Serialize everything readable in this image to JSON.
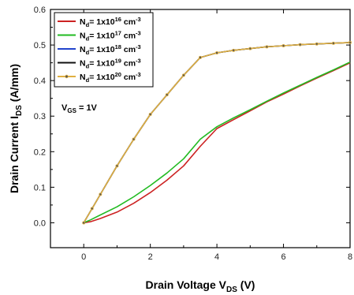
{
  "chart_data": {
    "type": "line",
    "title": "",
    "xlabel": {
      "main": "Drain Voltage V",
      "sub": "DS",
      "tail": " (V)"
    },
    "ylabel": {
      "main": "Drain Current I",
      "sub": "DS",
      "tail": " (A/mm)"
    },
    "xlim": [
      -1,
      8
    ],
    "ylim": [
      -0.07,
      0.6
    ],
    "xticks": [
      0,
      2,
      4,
      6,
      8
    ],
    "yticks": [
      0.0,
      0.1,
      0.2,
      0.3,
      0.4,
      0.5,
      0.6
    ],
    "ytick_labels": [
      "0.0",
      "0.1",
      "0.2",
      "0.3",
      "0.4",
      "0.5",
      "0.6"
    ],
    "grid": false,
    "legend_position": "top-left",
    "annotation": {
      "main": "V",
      "sub": "GS",
      "tail": " = 1V"
    },
    "series": [
      {
        "name": {
          "main": "N",
          "sub": "d",
          "mid": "= 1x10",
          "sup": "16",
          "unit": " cm",
          "unitsup": "-3"
        },
        "color": "#cc2222",
        "markers": false,
        "x": [
          0,
          0.2,
          0.5,
          1.0,
          1.5,
          2.0,
          2.5,
          3.0,
          3.5,
          4.0,
          4.5,
          5.0,
          5.5,
          6.0,
          6.5,
          7.0,
          7.5,
          8.0
        ],
        "y": [
          0.0,
          0.003,
          0.012,
          0.03,
          0.055,
          0.085,
          0.12,
          0.16,
          0.215,
          0.265,
          0.29,
          0.315,
          0.34,
          0.362,
          0.385,
          0.407,
          0.428,
          0.45
        ]
      },
      {
        "name": {
          "main": "N",
          "sub": "d",
          "mid": "= 1x10",
          "sup": "17",
          "unit": " cm",
          "unitsup": "-3"
        },
        "color": "#22bb22",
        "markers": false,
        "x": [
          0,
          0.2,
          0.5,
          1.0,
          1.5,
          2.0,
          2.5,
          3.0,
          3.5,
          4.0,
          4.5,
          5.0,
          5.5,
          6.0,
          6.5,
          7.0,
          7.5,
          8.0
        ],
        "y": [
          0.0,
          0.008,
          0.022,
          0.045,
          0.073,
          0.105,
          0.14,
          0.18,
          0.235,
          0.27,
          0.295,
          0.318,
          0.342,
          0.365,
          0.387,
          0.409,
          0.43,
          0.452
        ]
      },
      {
        "name": {
          "main": "N",
          "sub": "d",
          "mid": "= 1x10",
          "sup": "18",
          "unit": " cm",
          "unitsup": "-3"
        },
        "color": "#2244cc",
        "markers": false,
        "x": [
          0,
          0.25,
          0.5,
          1.0,
          1.5,
          2.0,
          2.5,
          3.0,
          3.5,
          4.0,
          4.5,
          5.0,
          5.5,
          6.0,
          6.5,
          7.0,
          7.5,
          8.0
        ],
        "y": [
          0.0,
          0.04,
          0.08,
          0.16,
          0.235,
          0.305,
          0.36,
          0.415,
          0.465,
          0.478,
          0.485,
          0.49,
          0.495,
          0.498,
          0.501,
          0.503,
          0.505,
          0.507
        ]
      },
      {
        "name": {
          "main": "N",
          "sub": "d",
          "mid": "= 1x10",
          "sup": "19",
          "unit": " cm",
          "unitsup": "-3"
        },
        "color": "#111111",
        "markers": false,
        "x": [
          0,
          0.25,
          0.5,
          1.0,
          1.5,
          2.0,
          2.5,
          3.0,
          3.5,
          4.0,
          4.5,
          5.0,
          5.5,
          6.0,
          6.5,
          7.0,
          7.5,
          8.0
        ],
        "y": [
          0.0,
          0.04,
          0.08,
          0.16,
          0.235,
          0.305,
          0.36,
          0.415,
          0.465,
          0.478,
          0.485,
          0.49,
          0.495,
          0.498,
          0.501,
          0.503,
          0.505,
          0.507
        ]
      },
      {
        "name": {
          "main": "N",
          "sub": "d",
          "mid": "= 1x10",
          "sup": "20",
          "unit": " cm",
          "unitsup": "-3"
        },
        "color": "#e0b040",
        "markers": true,
        "x": [
          0,
          0.25,
          0.5,
          1.0,
          1.5,
          2.0,
          2.5,
          3.0,
          3.5,
          4.0,
          4.5,
          5.0,
          5.5,
          6.0,
          6.5,
          7.0,
          7.5,
          8.0
        ],
        "y": [
          0.0,
          0.04,
          0.08,
          0.16,
          0.235,
          0.305,
          0.36,
          0.415,
          0.465,
          0.478,
          0.485,
          0.49,
          0.495,
          0.498,
          0.501,
          0.503,
          0.505,
          0.507
        ]
      }
    ]
  }
}
